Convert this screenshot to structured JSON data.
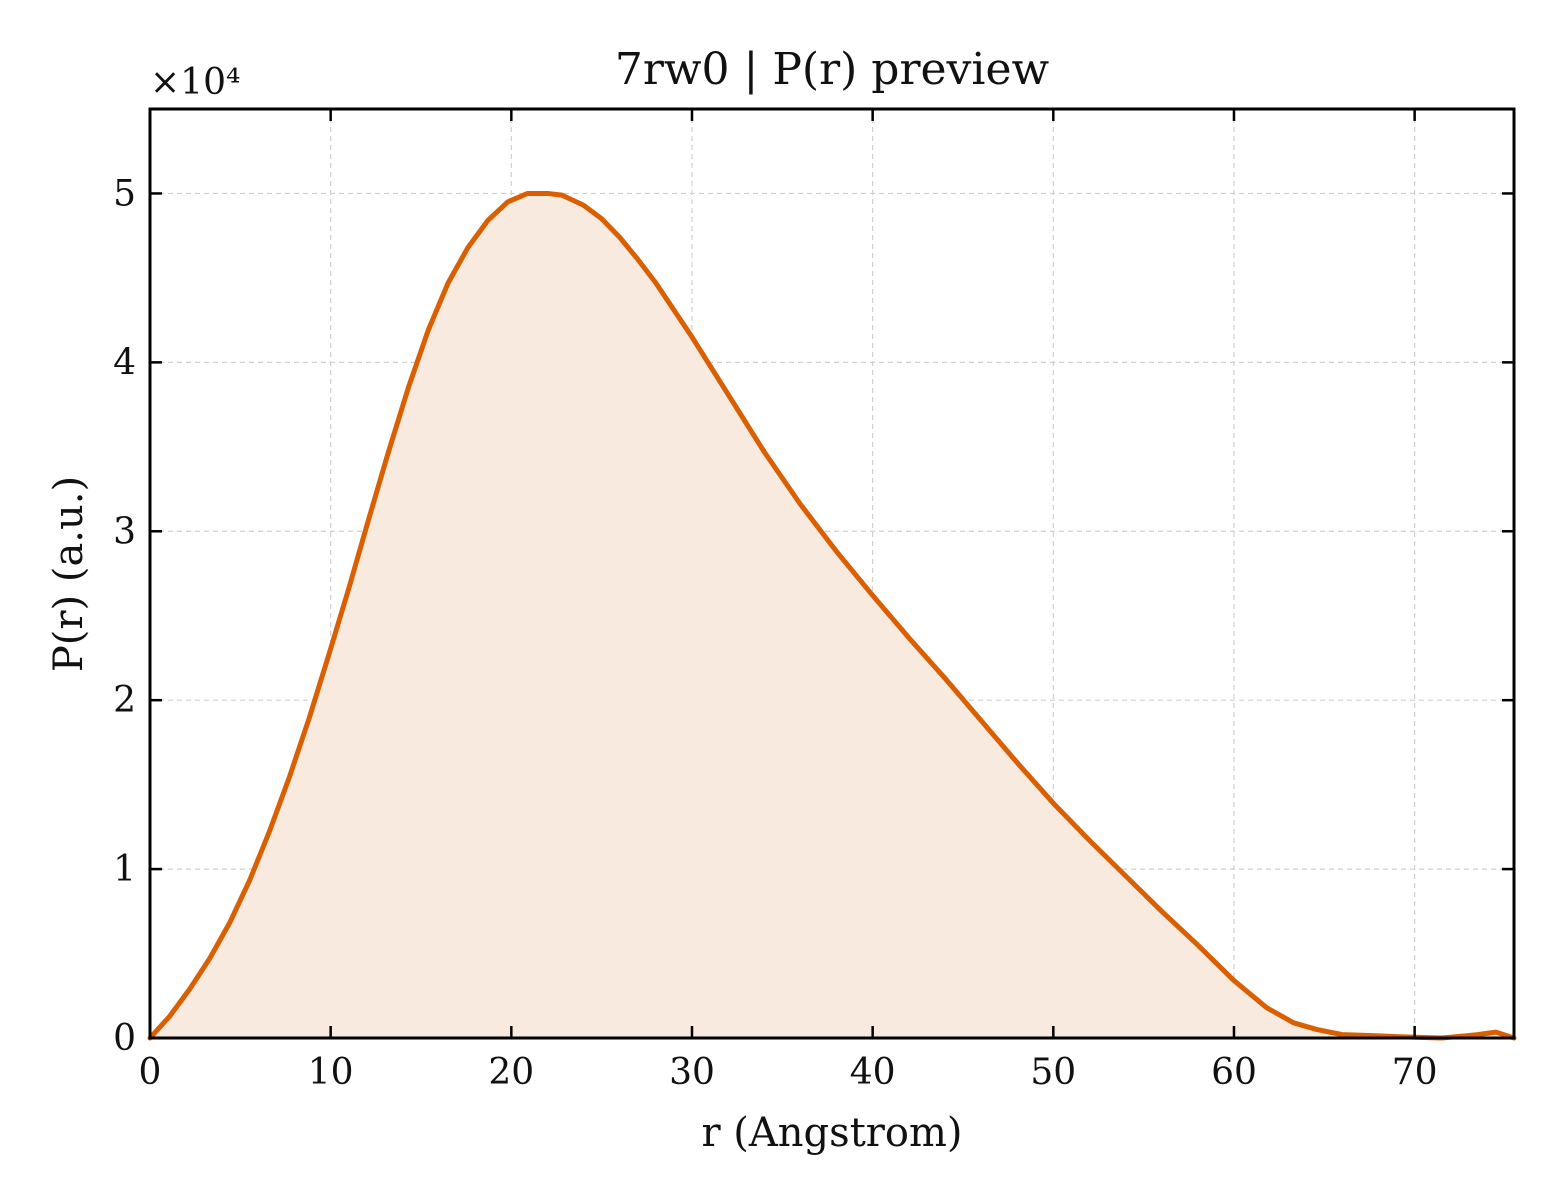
{
  "chart_data": {
    "type": "area",
    "title": "7rw0 | P(r) preview",
    "xlabel": "r (Angstrom)",
    "ylabel": "P(r) (a.u.)",
    "y_multiplier_label": "×10⁴",
    "xlim": [
      0,
      75.5
    ],
    "ylim": [
      0,
      5.5
    ],
    "y_scale_factor": 10000,
    "x_ticks": [
      0,
      10,
      20,
      30,
      40,
      50,
      60,
      70
    ],
    "y_ticks": [
      0,
      1,
      2,
      3,
      4,
      5
    ],
    "grid": true,
    "legend": "none",
    "colors": {
      "line": "#d95f02",
      "fill": "#f9eadf",
      "grid": "#d0d0d0",
      "axis": "#000000"
    },
    "series": [
      {
        "x": [
          0,
          1.1,
          2.2,
          3.3,
          4.4,
          5.5,
          6.6,
          7.7,
          8.8,
          9.9,
          11.0,
          12.1,
          13.2,
          14.3,
          15.4,
          16.5,
          17.6,
          18.7,
          19.8,
          20.9,
          22.0,
          22.8,
          24.0,
          25.0,
          26.0,
          27.0,
          28.0,
          29.0,
          30.0,
          32.0,
          34.0,
          36.0,
          38.0,
          40.0,
          42.0,
          44.0,
          46.0,
          48.0,
          50.0,
          52.0,
          54.0,
          56.0,
          58.0,
          60.0,
          61.8,
          63.3,
          64.6,
          66.0,
          67.5,
          69.0,
          70.5,
          71.5,
          72.5,
          73.5,
          74.5,
          75.5
        ],
        "values": [
          0,
          0.13,
          0.29,
          0.47,
          0.68,
          0.93,
          1.22,
          1.54,
          1.89,
          2.27,
          2.66,
          3.07,
          3.47,
          3.85,
          4.19,
          4.47,
          4.68,
          4.84,
          4.95,
          5.0,
          5.0,
          4.99,
          4.93,
          4.85,
          4.74,
          4.61,
          4.47,
          4.31,
          4.15,
          3.81,
          3.47,
          3.16,
          2.88,
          2.62,
          2.37,
          2.13,
          1.88,
          1.63,
          1.39,
          1.17,
          0.96,
          0.75,
          0.55,
          0.34,
          0.18,
          0.09,
          0.05,
          0.02,
          0.015,
          0.008,
          0.003,
          0.0,
          0.01,
          0.02,
          0.035,
          0.0
        ]
      }
    ]
  }
}
